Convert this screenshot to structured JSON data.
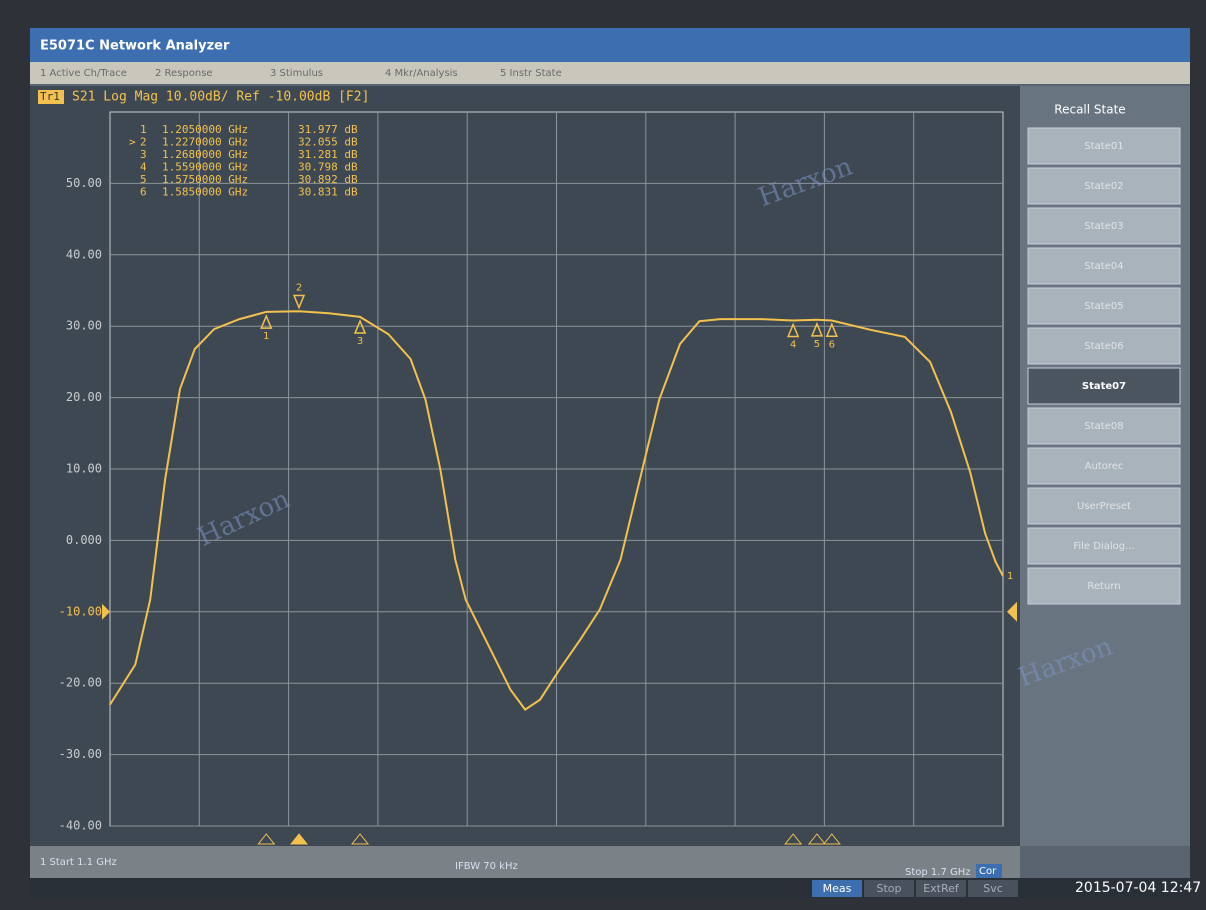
{
  "window": {
    "title": "E5071C Network Analyzer"
  },
  "menu": [
    "1 Active Ch/Trace",
    "2 Response",
    "3 Stimulus",
    "4 Mkr/Analysis",
    "5 Instr State"
  ],
  "trace_header": {
    "trace": "Tr1",
    "text": "S21 Log Mag 10.00dB/ Ref -10.00dB [F2]"
  },
  "plot": {
    "type": "line",
    "color": "#f2c14e",
    "xlim": [
      1.1,
      1.7
    ],
    "ylim": [
      -40,
      60
    ],
    "yticks": [
      {
        "value": -40,
        "label": "-40.00"
      },
      {
        "value": -30,
        "label": "-30.00"
      },
      {
        "value": -20,
        "label": "-20.00"
      },
      {
        "value": -10,
        "label": "-10.00"
      },
      {
        "value": 0,
        "label": "0.000"
      },
      {
        "value": 10,
        "label": "10.00"
      },
      {
        "value": 20,
        "label": "20.00"
      },
      {
        "value": 30,
        "label": "30.00"
      },
      {
        "value": 40,
        "label": "40.00"
      },
      {
        "value": 50,
        "label": "50.00"
      }
    ],
    "ref_level": -10,
    "x": [
      1.1,
      1.117,
      1.127,
      1.137,
      1.147,
      1.157,
      1.17,
      1.187,
      1.205,
      1.227,
      1.247,
      1.268,
      1.287,
      1.302,
      1.312,
      1.322,
      1.332,
      1.339,
      1.349,
      1.359,
      1.369,
      1.379,
      1.389,
      1.402,
      1.416,
      1.429,
      1.443,
      1.456,
      1.469,
      1.483,
      1.496,
      1.51,
      1.537,
      1.559,
      1.575,
      1.585,
      1.611,
      1.634,
      1.651,
      1.665,
      1.678,
      1.688,
      1.695,
      1.7
    ],
    "values": [
      -23,
      -17.4,
      -8.3,
      8.5,
      21.2,
      26.8,
      29.6,
      31,
      32,
      32.1,
      31.8,
      31.3,
      28.9,
      25.4,
      19.7,
      9.9,
      -2.7,
      -8.3,
      -12.5,
      -16.7,
      -20.9,
      -23.7,
      -22.3,
      -18.1,
      -13.9,
      -9.7,
      -2.7,
      8.5,
      19.7,
      27.5,
      30.7,
      31,
      31,
      30.8,
      30.9,
      30.8,
      29.5,
      28.5,
      25,
      18,
      9.5,
      1,
      -3,
      -5
    ],
    "trace_end_label": "1",
    "markers": [
      {
        "label": "1",
        "freq": 1.205,
        "value": 31.977,
        "freq_label": "1.2050000 GHz",
        "value_label": "31.977 dB"
      },
      {
        "label": "2",
        "freq": 1.227,
        "value": 32.055,
        "freq_label": "1.2270000 GHz",
        "value_label": "32.055 dB",
        "active": true
      },
      {
        "label": "3",
        "freq": 1.268,
        "value": 31.281,
        "freq_label": "1.2680000 GHz",
        "value_label": "31.281 dB"
      },
      {
        "label": "4",
        "freq": 1.559,
        "value": 30.798,
        "freq_label": "1.5590000 GHz",
        "value_label": "30.798 dB"
      },
      {
        "label": "5",
        "freq": 1.575,
        "value": 30.892,
        "freq_label": "1.5750000 GHz",
        "value_label": "30.892 dB"
      },
      {
        "label": "6",
        "freq": 1.585,
        "value": 30.831,
        "freq_label": "1.5850000 GHz",
        "value_label": "30.831 dB"
      }
    ]
  },
  "watermark": "Harxon",
  "softkeys": {
    "title": "Recall State",
    "items": [
      "State01",
      "State02",
      "State03",
      "State04",
      "State05",
      "State06",
      "State07",
      "State08",
      "Autorec",
      "UserPreset",
      "File Dialog...",
      "Return"
    ],
    "selected": 6
  },
  "footer": {
    "start": "1 Start 1.1 GHz",
    "ifbw": "IFBW 70 kHz",
    "stop": "Stop 1.7 GHz",
    "cor": "Cor"
  },
  "status": {
    "items": [
      "Meas",
      "Stop",
      "ExtRef",
      "Svc"
    ],
    "datetime": "2015-07-04 12:47"
  }
}
